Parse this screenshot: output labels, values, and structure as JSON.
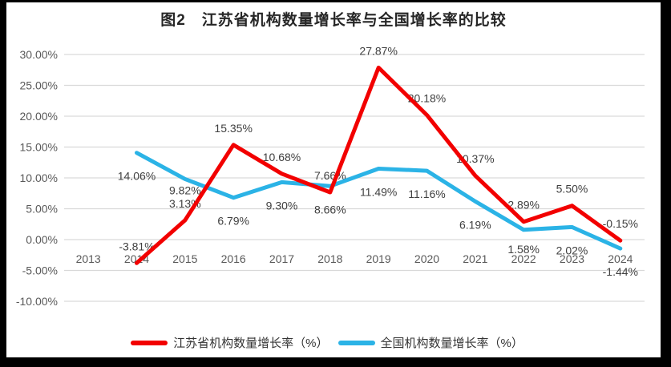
{
  "window": {
    "background": "#000000",
    "card_background": "#ffffff"
  },
  "chart_data": {
    "type": "line",
    "title": "图2　江苏省机构数量增长率与全国增长率的比较",
    "categories": [
      "2013",
      "2014",
      "2015",
      "2016",
      "2017",
      "2018",
      "2019",
      "2020",
      "2021",
      "2022",
      "2023",
      "2024"
    ],
    "series": [
      {
        "name": "江苏省机构数量增长率（%）",
        "color": "#F20000",
        "label_position": "above",
        "values": [
          null,
          -3.81,
          3.13,
          15.35,
          10.68,
          7.66,
          27.87,
          20.18,
          10.37,
          2.89,
          5.5,
          -0.15
        ],
        "labels": [
          "",
          "-3.81%",
          "3.13%",
          "15.35%",
          "10.68%",
          "7.66%",
          "27.87%",
          "20.18%",
          "10.37%",
          "2.89%",
          "5.50%",
          "-0.15%"
        ]
      },
      {
        "name": "全国机构数量增长率（%）",
        "color": "#2BB3E6",
        "label_position": "below",
        "values": [
          null,
          14.06,
          9.82,
          6.79,
          9.3,
          8.66,
          11.49,
          11.16,
          6.19,
          1.58,
          2.02,
          -1.44
        ],
        "labels": [
          "",
          "14.06%",
          "9.82%",
          "6.79%",
          "9.30%",
          "8.66%",
          "11.49%",
          "11.16%",
          "6.19%",
          "1.58%",
          "2.02%",
          "-1.44%"
        ],
        "label_dy_overrides": {
          "2015": 19,
          "2022": 29
        }
      }
    ],
    "y_axis": {
      "min": -10,
      "max": 30,
      "step": 5,
      "tick_labels": [
        "30.00%",
        "25.00%",
        "20.00%",
        "15.00%",
        "10.00%",
        "5.00%",
        "0.00%",
        "-5.00%",
        "-10.00%"
      ]
    },
    "grid": "horizontal",
    "legend_position": "bottom",
    "colors": {
      "gridline": "#d9d9d9",
      "tick_text": "#595959",
      "label_text": "#404040"
    }
  }
}
